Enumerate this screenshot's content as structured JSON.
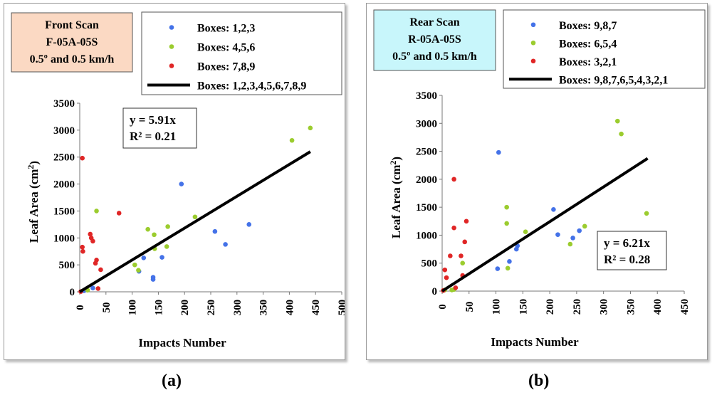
{
  "captions": {
    "a": "(a)",
    "b": "(b)"
  },
  "colors": {
    "blue": "#4472e8",
    "green": "#9bcc2e",
    "red": "#e02626",
    "line": "#000000",
    "title_a_bg": "#fbd9c3",
    "title_b_bg": "#c8f6fb"
  },
  "chart_data": [
    {
      "type": "scatter",
      "title_lines": [
        "Front Scan",
        "F-05A-05S",
        "0.5º and 0.5 km/h"
      ],
      "xlabel": "Impacts Number",
      "ylabel": "Leaf Area (cm",
      "ylabel_sup": "2",
      "ylabel_end": ")",
      "xlim": [
        0,
        500
      ],
      "ylim": [
        0,
        3500
      ],
      "xticks": [
        0,
        50,
        100,
        150,
        200,
        250,
        300,
        350,
        400,
        450,
        500
      ],
      "yticks": [
        0,
        500,
        1000,
        1500,
        2000,
        2500,
        3000,
        3500
      ],
      "legend": [
        "Boxes: 1,2,3",
        "Boxes: 4,5,6",
        "Boxes: 7,8,9",
        "Boxes: 1,2,3,4,5,6,7,8,9"
      ],
      "series": [
        {
          "name": "Boxes: 1,2,3",
          "color": "blue",
          "x": [
            8,
            25,
            113,
            122,
            140,
            140,
            157,
            194,
            258,
            278,
            323
          ],
          "y": [
            20,
            70,
            380,
            630,
            270,
            230,
            640,
            2000,
            1120,
            880,
            1250
          ]
        },
        {
          "name": "Boxes: 4,5,6",
          "color": "green",
          "x": [
            15,
            32,
            105,
            112,
            130,
            142,
            143,
            166,
            168,
            220,
            405,
            440
          ],
          "y": [
            30,
            1500,
            500,
            400,
            1160,
            1060,
            800,
            840,
            1210,
            1390,
            2810,
            3040
          ]
        },
        {
          "name": "Boxes: 7,8,9",
          "color": "red",
          "x": [
            2,
            5,
            5,
            6,
            20,
            22,
            25,
            30,
            32,
            35,
            40,
            75
          ],
          "y": [
            5,
            2480,
            830,
            750,
            1070,
            1000,
            940,
            530,
            590,
            60,
            410,
            1460
          ]
        }
      ],
      "fit": {
        "name": "Boxes: 1,2,3,4,5,6,7,8,9",
        "slope": 5.91,
        "x_end": 440
      },
      "equation": "y = 5.91x",
      "r2": "R² = 0.21"
    },
    {
      "type": "scatter",
      "title_lines": [
        "Rear Scan",
        "R-05A-05S",
        "0.5º and 0.5 km/h"
      ],
      "xlabel": "Impacts Number",
      "ylabel": "Leaf Area (cm",
      "ylabel_sup": "2",
      "ylabel_end": ")",
      "xlim": [
        0,
        450
      ],
      "ylim": [
        0,
        3500
      ],
      "xticks": [
        0,
        50,
        100,
        150,
        200,
        250,
        300,
        350,
        400,
        450
      ],
      "yticks": [
        0,
        500,
        1000,
        1500,
        2000,
        2500,
        3000,
        3500
      ],
      "legend": [
        "Boxes: 9,8,7",
        "Boxes: 6,5,4",
        "Boxes: 3,2,1",
        "Boxes: 9,8,7,6,5,4,3,2,1"
      ],
      "series": [
        {
          "name": "Boxes: 9,8,7",
          "color": "blue",
          "x": [
            105,
            103,
            125,
            138,
            140,
            207,
            215,
            243,
            255
          ],
          "y": [
            2480,
            400,
            530,
            750,
            810,
            1460,
            1010,
            950,
            1080
          ]
        },
        {
          "name": "Boxes: 6,5,4",
          "color": "green",
          "x": [
            5,
            18,
            22,
            38,
            120,
            120,
            122,
            155,
            238,
            265,
            326,
            333,
            380
          ],
          "y": [
            20,
            20,
            30,
            500,
            1500,
            1210,
            410,
            1060,
            840,
            1160,
            3040,
            2810,
            1390
          ]
        },
        {
          "name": "Boxes: 3,2,1",
          "color": "red",
          "x": [
            2,
            5,
            8,
            15,
            22,
            22,
            25,
            35,
            38,
            42,
            45
          ],
          "y": [
            10,
            380,
            240,
            630,
            2000,
            1130,
            60,
            630,
            280,
            880,
            1250
          ]
        }
      ],
      "fit": {
        "name": "Boxes: 9,8,7,6,5,4,3,2,1",
        "slope": 6.21,
        "x_end": 382
      },
      "equation": "y = 6.21x",
      "r2": "R² = 0.28"
    }
  ]
}
